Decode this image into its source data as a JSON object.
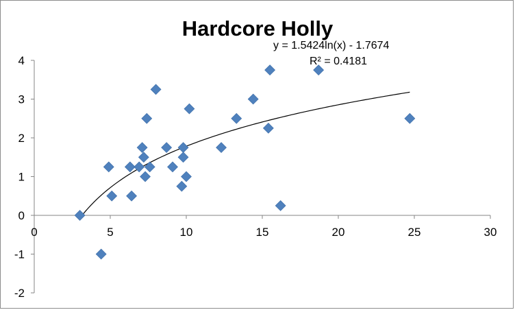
{
  "chart_data": {
    "type": "scatter",
    "title": "Hardcore Holly",
    "xlabel": "",
    "ylabel": "",
    "xlim": [
      0,
      30
    ],
    "ylim": [
      -2,
      4
    ],
    "x_ticks": [
      0,
      5,
      10,
      15,
      20,
      25,
      30
    ],
    "y_ticks": [
      -2,
      -1,
      0,
      1,
      2,
      3,
      4
    ],
    "grid": false,
    "legend": "none",
    "marker_color": "#4F81BD",
    "trendline": {
      "type": "logarithmic",
      "a": 1.5424,
      "b": -1.7674,
      "x_range": [
        3,
        24.7
      ],
      "equation_label": "y = 1.5424ln(x) - 1.7674",
      "r2_label": "R² = 0.4181",
      "color": "#000000"
    },
    "points": [
      {
        "x": 3.0,
        "y": 0.0
      },
      {
        "x": 4.4,
        "y": -1.0
      },
      {
        "x": 4.9,
        "y": 1.25
      },
      {
        "x": 5.1,
        "y": 0.5
      },
      {
        "x": 6.3,
        "y": 1.25
      },
      {
        "x": 6.4,
        "y": 0.5
      },
      {
        "x": 6.9,
        "y": 1.25
      },
      {
        "x": 7.1,
        "y": 1.75
      },
      {
        "x": 7.2,
        "y": 1.5
      },
      {
        "x": 7.3,
        "y": 1.0
      },
      {
        "x": 7.4,
        "y": 2.5
      },
      {
        "x": 7.6,
        "y": 1.25
      },
      {
        "x": 8.0,
        "y": 3.25
      },
      {
        "x": 8.7,
        "y": 1.75
      },
      {
        "x": 9.1,
        "y": 1.25
      },
      {
        "x": 9.7,
        "y": 0.75
      },
      {
        "x": 9.8,
        "y": 1.75
      },
      {
        "x": 9.8,
        "y": 1.5
      },
      {
        "x": 10.0,
        "y": 1.0
      },
      {
        "x": 10.2,
        "y": 2.75
      },
      {
        "x": 12.3,
        "y": 1.75
      },
      {
        "x": 13.3,
        "y": 2.5
      },
      {
        "x": 14.4,
        "y": 3.0
      },
      {
        "x": 15.4,
        "y": 2.25
      },
      {
        "x": 15.5,
        "y": 3.75
      },
      {
        "x": 16.2,
        "y": 0.25
      },
      {
        "x": 18.7,
        "y": 3.75
      },
      {
        "x": 24.7,
        "y": 2.5
      }
    ]
  }
}
